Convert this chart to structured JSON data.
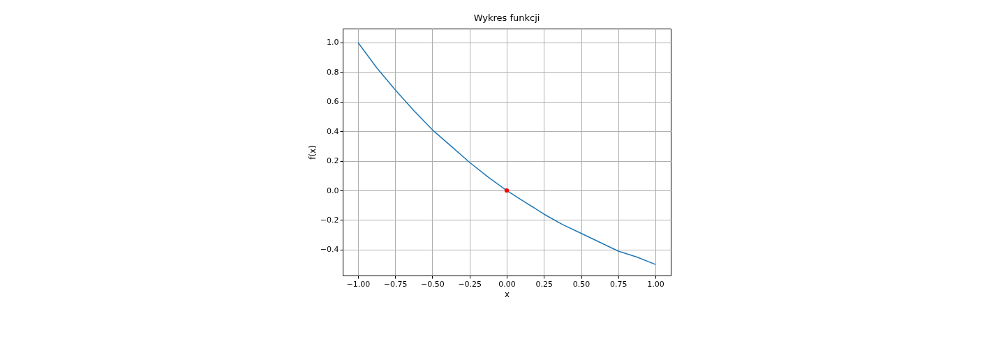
{
  "chart_data": {
    "type": "line",
    "title": "Wykres funkcji",
    "xlabel": "x",
    "ylabel": "f(x)",
    "xlim": [
      -1.103,
      1.103
    ],
    "ylim": [
      -0.575,
      1.094
    ],
    "xticks": [
      {
        "value": -1,
        "label": "−1.00"
      },
      {
        "value": -0.75,
        "label": "−0.75"
      },
      {
        "value": -0.5,
        "label": "−0.50"
      },
      {
        "value": -0.25,
        "label": "−0.25"
      },
      {
        "value": 0,
        "label": "0.00"
      },
      {
        "value": 0.25,
        "label": "0.25"
      },
      {
        "value": 0.5,
        "label": "0.50"
      },
      {
        "value": 0.75,
        "label": "0.75"
      },
      {
        "value": 1,
        "label": "1.00"
      }
    ],
    "yticks": [
      {
        "value": -0.4,
        "label": "−0.4"
      },
      {
        "value": -0.2,
        "label": "−0.2"
      },
      {
        "value": 0,
        "label": "0.0"
      },
      {
        "value": 0.2,
        "label": "0.2"
      },
      {
        "value": 0.4,
        "label": "0.4"
      },
      {
        "value": 0.6,
        "label": "0.6"
      },
      {
        "value": 0.8,
        "label": "0.8"
      },
      {
        "value": 1,
        "label": "1.0"
      }
    ],
    "grid": true,
    "series": [
      {
        "color": "#1f77b4",
        "x": [
          -1,
          -0.875,
          -0.75,
          -0.625,
          -0.5,
          -0.375,
          -0.25,
          -0.125,
          0,
          0.125,
          0.25,
          0.375,
          0.5,
          0.625,
          0.75,
          0.875,
          1
        ],
        "values": [
          1,
          0.83,
          0.68,
          0.54,
          0.41,
          0.3,
          0.19,
          0.09,
          0,
          -0.08,
          -0.16,
          -0.23,
          -0.29,
          -0.35,
          -0.41,
          -0.45,
          -0.5
        ]
      },
      {
        "type": "scatter",
        "color": "#ff0000",
        "marker": "circle",
        "x": [
          0
        ],
        "values": [
          0
        ]
      }
    ]
  }
}
